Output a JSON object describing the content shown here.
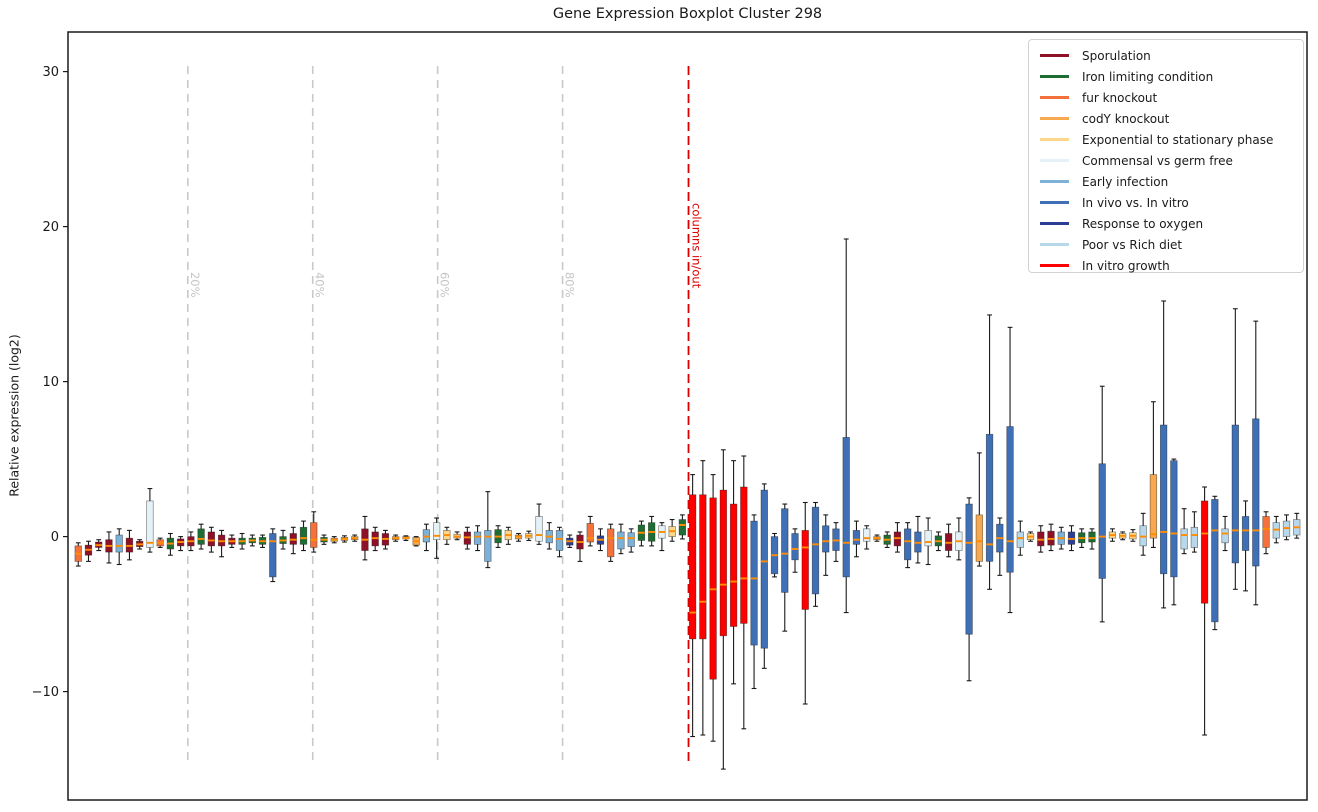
{
  "title": "Gene Expression Boxplot Cluster 298",
  "y_axis": {
    "label": "Relative expression (log2)",
    "ticks": [
      {
        "v": 30,
        "label": "30"
      },
      {
        "v": 20,
        "label": "20"
      },
      {
        "v": 10,
        "label": "10"
      },
      {
        "v": 0,
        "label": "0"
      },
      {
        "v": -10,
        "label": "−10"
      }
    ],
    "range_shown": [
      -17.2,
      32.5
    ]
  },
  "annotations": {
    "separator_label": "columns in/out",
    "percent_labels": [
      "20%",
      "40%",
      "60%",
      "80%"
    ]
  },
  "chart_data": {
    "type": "boxplot",
    "title": "Gene Expression Boxplot Cluster 298",
    "xlabel": "",
    "ylabel": "Relative expression (log2)",
    "ylim": [
      -17.2,
      32.5
    ],
    "yticks": [
      -10,
      0,
      10,
      20,
      30
    ],
    "grid": "vertical dashed percent lines",
    "legend_position": "upper right",
    "median_color": "#ff8c00",
    "whisker_color": "#1a1a1a",
    "groups": {
      "S": {
        "label": "Sporulation",
        "color": "#8f1128"
      },
      "I": {
        "label": "Iron limiting condition",
        "color": "#1e6e34"
      },
      "F": {
        "label": "fur knockout",
        "color": "#f4713b"
      },
      "C": {
        "label": "codY knockout",
        "color": "#f8a84e"
      },
      "E": {
        "label": "Exponential to stationary phase",
        "color": "#fbd78c"
      },
      "G": {
        "label": "Commensal vs germ free",
        "color": "#e4f2f8"
      },
      "A": {
        "label": "Early infection",
        "color": "#7eb1d6"
      },
      "V": {
        "label": "In vivo vs. In vitro",
        "color": "#3f6fb5"
      },
      "O": {
        "label": "Response to oxygen",
        "color": "#2c3e94"
      },
      "P": {
        "label": "Poor vs Rich diet",
        "color": "#b7d8ea"
      },
      "R": {
        "label": "In vitro growth",
        "color": "#fe0000"
      }
    },
    "legend_order": [
      "S",
      "I",
      "F",
      "C",
      "E",
      "G",
      "A",
      "V",
      "O",
      "P",
      "R"
    ],
    "percent_gridlines": [
      {
        "label": "20%",
        "slot": 11.7
      },
      {
        "label": "40%",
        "slot": 23.9
      },
      {
        "label": "60%",
        "slot": 36.1
      },
      {
        "label": "80%",
        "slot": 48.3
      }
    ],
    "separator": {
      "label": "columns in/out",
      "slot": 60.6,
      "color": "#dc0000"
    },
    "boxes_format": [
      "group",
      "whisker_low",
      "q1",
      "median",
      "q3",
      "whisker_high"
    ],
    "boxes": [
      [
        "F",
        -1.9,
        -1.6,
        -1.1,
        -0.6,
        -0.4
      ],
      [
        "S",
        -1.6,
        -1.2,
        -0.85,
        -0.55,
        -0.3
      ],
      [
        "S",
        -0.9,
        -0.7,
        -0.55,
        -0.35,
        -0.2
      ],
      [
        "S",
        -1.7,
        -1.0,
        -0.6,
        -0.2,
        0.3
      ],
      [
        "A",
        -1.8,
        -1.0,
        -0.6,
        0.1,
        0.5
      ],
      [
        "S",
        -1.5,
        -1.0,
        -0.6,
        -0.1,
        0.4
      ],
      [
        "S",
        -0.8,
        -0.65,
        -0.5,
        -0.3,
        -0.2
      ],
      [
        "G",
        -1.0,
        -0.7,
        -0.4,
        2.3,
        3.1
      ],
      [
        "F",
        -0.7,
        -0.6,
        -0.4,
        -0.2,
        -0.1
      ],
      [
        "I",
        -1.2,
        -0.8,
        -0.45,
        -0.1,
        0.2
      ],
      [
        "S",
        -0.9,
        -0.6,
        -0.35,
        -0.15,
        0.0
      ],
      [
        "S",
        -0.9,
        -0.6,
        -0.3,
        0.0,
        0.3
      ],
      [
        "I",
        -0.8,
        -0.5,
        -0.15,
        0.5,
        0.8
      ],
      [
        "S",
        -1.0,
        -0.6,
        -0.25,
        0.3,
        0.6
      ],
      [
        "S",
        -1.3,
        -0.6,
        -0.3,
        0.1,
        0.4
      ],
      [
        "S",
        -0.7,
        -0.5,
        -0.3,
        -0.1,
        0.1
      ],
      [
        "I",
        -0.8,
        -0.5,
        -0.3,
        -0.1,
        0.2
      ],
      [
        "I",
        -0.6,
        -0.4,
        -0.25,
        -0.1,
        0.1
      ],
      [
        "I",
        -0.7,
        -0.5,
        -0.3,
        -0.05,
        0.1
      ],
      [
        "V",
        -2.9,
        -2.6,
        -0.3,
        0.2,
        0.5
      ],
      [
        "I",
        -0.8,
        -0.45,
        -0.25,
        0.0,
        0.4
      ],
      [
        "S",
        -1.1,
        -0.5,
        -0.2,
        0.2,
        0.6
      ],
      [
        "I",
        -0.9,
        -0.5,
        -0.1,
        0.6,
        1.0
      ],
      [
        "F",
        -1.0,
        -0.7,
        -0.2,
        0.9,
        1.6
      ],
      [
        "I",
        -0.5,
        -0.35,
        -0.2,
        -0.05,
        0.1
      ],
      [
        "C",
        -0.4,
        -0.3,
        -0.2,
        -0.1,
        0.0
      ],
      [
        "C",
        -0.35,
        -0.25,
        -0.15,
        -0.05,
        0.05
      ],
      [
        "C",
        -0.3,
        -0.2,
        -0.1,
        0.0,
        0.1
      ],
      [
        "S",
        -1.5,
        -0.9,
        -0.2,
        0.5,
        1.3
      ],
      [
        "S",
        -0.9,
        -0.6,
        -0.1,
        0.3,
        0.6
      ],
      [
        "S",
        -0.8,
        -0.55,
        -0.15,
        0.2,
        0.4
      ],
      [
        "C",
        -0.3,
        -0.2,
        -0.1,
        0.0,
        0.1
      ],
      [
        "C",
        -0.25,
        -0.15,
        -0.1,
        0.0,
        0.05
      ],
      [
        "C",
        -0.6,
        -0.55,
        -0.3,
        -0.05,
        0.0
      ],
      [
        "A",
        -0.9,
        -0.35,
        0.0,
        0.45,
        0.8
      ],
      [
        "G",
        -1.4,
        -0.2,
        0.05,
        0.9,
        1.2
      ],
      [
        "E",
        -0.5,
        -0.2,
        0.1,
        0.4,
        0.6
      ],
      [
        "E",
        -0.2,
        -0.1,
        0.0,
        0.15,
        0.3
      ],
      [
        "S",
        -0.8,
        -0.5,
        -0.05,
        0.3,
        0.6
      ],
      [
        "A",
        -0.9,
        -0.5,
        0.0,
        0.3,
        0.7
      ],
      [
        "A",
        -2.0,
        -1.6,
        0.0,
        0.4,
        2.9
      ],
      [
        "I",
        -0.7,
        -0.4,
        0.0,
        0.45,
        0.7
      ],
      [
        "E",
        -0.5,
        -0.2,
        0.1,
        0.4,
        0.6
      ],
      [
        "C",
        -0.3,
        -0.15,
        0.0,
        0.1,
        0.2
      ],
      [
        "E",
        -0.25,
        -0.1,
        0.05,
        0.2,
        0.35
      ],
      [
        "G",
        -0.5,
        -0.3,
        0.1,
        1.3,
        2.1
      ],
      [
        "A",
        -0.8,
        -0.4,
        0.0,
        0.4,
        0.9
      ],
      [
        "A",
        -1.3,
        -0.9,
        -0.15,
        0.4,
        0.6
      ],
      [
        "O",
        -0.7,
        -0.55,
        -0.3,
        -0.1,
        0.1
      ],
      [
        "S",
        -1.6,
        -0.8,
        -0.35,
        0.1,
        0.3
      ],
      [
        "F",
        -0.6,
        -0.35,
        -0.1,
        0.85,
        1.3
      ],
      [
        "O",
        -0.9,
        -0.5,
        -0.2,
        0.05,
        0.5
      ],
      [
        "F",
        -1.6,
        -1.3,
        -0.1,
        0.5,
        0.8
      ],
      [
        "A",
        -1.1,
        -0.8,
        -0.1,
        0.3,
        0.8
      ],
      [
        "A",
        -1.0,
        -0.65,
        -0.1,
        0.25,
        0.5
      ],
      [
        "I",
        -0.6,
        -0.25,
        0.25,
        0.75,
        1.0
      ],
      [
        "I",
        -0.6,
        -0.3,
        0.3,
        0.9,
        1.3
      ],
      [
        "G",
        -0.9,
        -0.1,
        0.3,
        0.7,
        0.9
      ],
      [
        "E",
        -0.3,
        0.0,
        0.35,
        0.65,
        1.1
      ],
      [
        "I",
        -0.15,
        0.1,
        0.75,
        1.1,
        1.4
      ],
      [
        "R",
        -12.9,
        -6.6,
        -4.9,
        2.7,
        4.0
      ],
      [
        "R",
        -12.8,
        -6.6,
        -4.2,
        2.7,
        4.9
      ],
      [
        "R",
        -13.2,
        -9.2,
        -3.4,
        2.5,
        4.0
      ],
      [
        "R",
        -15.0,
        -6.4,
        -3.1,
        3.0,
        5.6
      ],
      [
        "R",
        -9.5,
        -5.8,
        -2.9,
        2.1,
        4.9
      ],
      [
        "R",
        -12.4,
        -5.6,
        -2.7,
        3.2,
        5.2
      ],
      [
        "V",
        -9.8,
        -7.0,
        -2.7,
        1.0,
        1.4
      ],
      [
        "V",
        -8.5,
        -7.2,
        -1.6,
        3.0,
        3.4
      ],
      [
        "V",
        -2.6,
        -2.4,
        -1.2,
        0.0,
        0.2
      ],
      [
        "V",
        -6.1,
        -3.6,
        -1.1,
        1.8,
        2.1
      ],
      [
        "V",
        -2.3,
        -1.5,
        -0.8,
        0.2,
        0.5
      ],
      [
        "R",
        -10.8,
        -4.7,
        -0.7,
        0.4,
        2.2
      ],
      [
        "V",
        -4.5,
        -3.7,
        -0.5,
        1.9,
        2.2
      ],
      [
        "V",
        -2.5,
        -1.0,
        -0.3,
        0.7,
        1.4
      ],
      [
        "V",
        -1.6,
        -0.9,
        -0.25,
        0.5,
        0.9
      ],
      [
        "V",
        -4.9,
        -2.6,
        -0.4,
        6.4,
        19.2
      ],
      [
        "V",
        -1.3,
        -0.5,
        -0.2,
        0.4,
        1.0
      ],
      [
        "G",
        -0.8,
        -0.3,
        -0.1,
        0.5,
        0.7
      ],
      [
        "C",
        -0.3,
        -0.2,
        -0.1,
        0.0,
        0.1
      ],
      [
        "I",
        -0.7,
        -0.5,
        -0.2,
        0.1,
        0.3
      ],
      [
        "S",
        -1.0,
        -0.6,
        -0.1,
        0.3,
        0.9
      ],
      [
        "V",
        -2.0,
        -1.5,
        -0.3,
        0.5,
        0.9
      ],
      [
        "V",
        -1.7,
        -1.0,
        -0.4,
        0.3,
        1.3
      ],
      [
        "G",
        -1.8,
        -0.6,
        -0.35,
        0.4,
        1.2
      ],
      [
        "I",
        -0.9,
        -0.6,
        -0.3,
        0.05,
        0.3
      ],
      [
        "S",
        -1.3,
        -0.9,
        -0.4,
        0.2,
        0.8
      ],
      [
        "G",
        -1.5,
        -0.9,
        -0.3,
        0.3,
        1.2
      ],
      [
        "V",
        -9.3,
        -6.3,
        -0.4,
        2.1,
        2.5
      ],
      [
        "C",
        -1.9,
        -1.6,
        -0.3,
        1.4,
        5.4
      ],
      [
        "V",
        -3.4,
        -1.6,
        -0.5,
        6.6,
        14.3
      ],
      [
        "V",
        -2.5,
        -1.0,
        -0.1,
        0.8,
        1.2
      ],
      [
        "V",
        -4.9,
        -2.3,
        -0.3,
        7.1,
        13.5
      ],
      [
        "P",
        -1.2,
        -0.7,
        -0.1,
        0.3,
        1.0
      ],
      [
        "E",
        -0.3,
        -0.2,
        0.0,
        0.2,
        0.3
      ],
      [
        "S",
        -1.0,
        -0.6,
        -0.2,
        0.3,
        0.7
      ],
      [
        "S",
        -0.9,
        -0.55,
        -0.15,
        0.35,
        0.8
      ],
      [
        "A",
        -0.8,
        -0.5,
        -0.1,
        0.3,
        0.6
      ],
      [
        "O",
        -0.9,
        -0.5,
        -0.15,
        0.3,
        0.7
      ],
      [
        "I",
        -0.7,
        -0.4,
        -0.1,
        0.25,
        0.5
      ],
      [
        "I",
        -0.8,
        -0.35,
        -0.1,
        0.3,
        0.5
      ],
      [
        "V",
        -5.5,
        -2.7,
        0.0,
        4.7,
        9.7
      ],
      [
        "E",
        -0.3,
        -0.1,
        0.1,
        0.3,
        0.5
      ],
      [
        "E",
        -0.2,
        -0.1,
        0.05,
        0.2,
        0.3
      ],
      [
        "E",
        -0.3,
        -0.15,
        0.05,
        0.25,
        0.45
      ],
      [
        "P",
        -1.2,
        -0.6,
        0.0,
        0.7,
        1.5
      ],
      [
        "C",
        -0.7,
        -0.1,
        0.15,
        4.0,
        8.7
      ],
      [
        "V",
        -4.6,
        -2.4,
        0.3,
        7.2,
        15.2
      ],
      [
        "V",
        -4.4,
        -2.6,
        0.2,
        4.9,
        5.0
      ],
      [
        "P",
        -1.1,
        -0.8,
        0.1,
        0.5,
        1.8
      ],
      [
        "P",
        -1.0,
        -0.7,
        0.1,
        0.6,
        1.6
      ],
      [
        "R",
        -12.8,
        -4.3,
        0.2,
        2.3,
        3.2
      ],
      [
        "V",
        -6.0,
        -5.5,
        0.4,
        2.4,
        2.6
      ],
      [
        "P",
        -0.9,
        -0.4,
        0.2,
        0.5,
        1.3
      ],
      [
        "V",
        -3.4,
        -1.7,
        0.4,
        7.2,
        14.7
      ],
      [
        "V",
        -3.5,
        -0.9,
        0.4,
        1.3,
        2.3
      ],
      [
        "V",
        -4.4,
        -1.9,
        0.4,
        7.6,
        13.9
      ],
      [
        "F",
        -1.1,
        -0.7,
        0.5,
        1.3,
        1.6
      ],
      [
        "P",
        -0.4,
        -0.1,
        0.45,
        0.9,
        1.3
      ],
      [
        "P",
        -0.2,
        0.0,
        0.55,
        1.0,
        1.4
      ],
      [
        "P",
        -0.1,
        0.1,
        0.6,
        1.1,
        1.5
      ]
    ]
  }
}
